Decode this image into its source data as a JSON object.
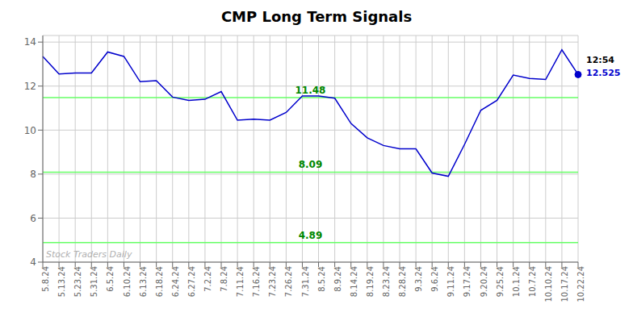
{
  "chart_data": {
    "type": "line",
    "title": "CMP Long Term Signals",
    "categories": [
      "5.8.24",
      "5.13.24",
      "5.23.24",
      "5.31.24",
      "6.5.24",
      "6.10.24",
      "6.13.24",
      "6.18.24",
      "6.24.24",
      "6.27.24",
      "7.2.24",
      "7.8.24",
      "7.11.24",
      "7.16.24",
      "7.23.24",
      "7.26.24",
      "7.31.24",
      "8.5.24",
      "8.9.24",
      "8.14.24",
      "8.19.24",
      "8.23.24",
      "8.28.24",
      "9.3.24",
      "9.6.24",
      "9.11.24",
      "9.17.24",
      "9.20.24",
      "9.25.24",
      "10.1.24",
      "10.7.24",
      "10.10.24",
      "10.17.24",
      "10.22.24"
    ],
    "values": [
      13.35,
      12.55,
      12.6,
      12.6,
      13.55,
      13.35,
      12.2,
      12.25,
      11.5,
      11.35,
      11.4,
      11.75,
      10.45,
      10.5,
      10.45,
      10.8,
      11.55,
      11.55,
      11.45,
      10.3,
      9.65,
      9.3,
      9.15,
      9.15,
      8.05,
      7.9,
      9.35,
      10.9,
      11.35,
      12.5,
      12.35,
      12.3,
      13.65,
      12.525
    ],
    "color": "#0000cc",
    "ylim": [
      4.0,
      14.3
    ],
    "yticks": [
      4,
      6,
      8,
      10,
      12,
      14
    ],
    "grid": true,
    "hlines": {
      "values": [
        11.48,
        8.09,
        4.89
      ],
      "color": "#66ff66"
    },
    "watermark": "Stock Traders Daily",
    "annotations": [
      "12:54",
      "12.525"
    ]
  }
}
